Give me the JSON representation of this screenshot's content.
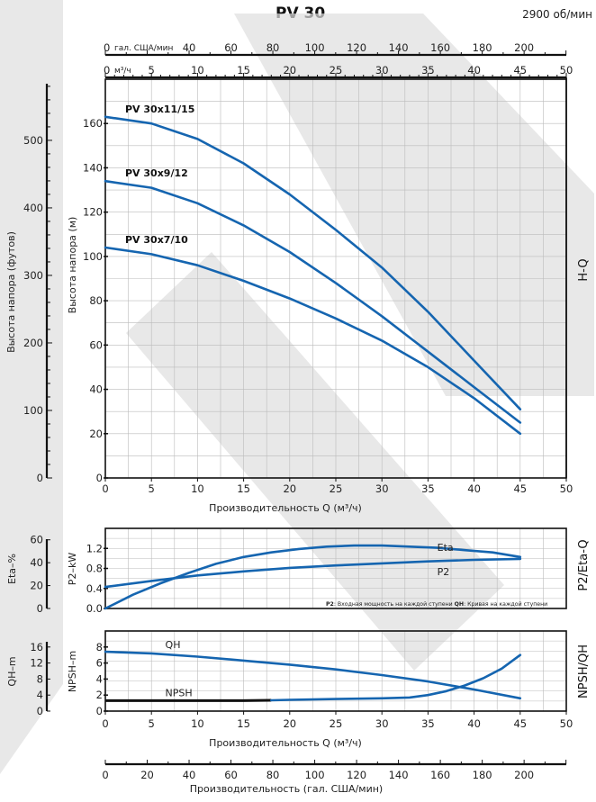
{
  "header": {
    "title": "PV 30",
    "speed": "2900 об/мин"
  },
  "colors": {
    "curve": "#1565b0",
    "grid": "#bbbbbb",
    "watermark": "#dedede",
    "axis": "#111111"
  },
  "chart_data": [
    {
      "type": "line",
      "name": "H-Q",
      "side_label": "H-Q",
      "xlabel": "Производительность Q (м³/ч)",
      "ylabel": "Высота напора (м)",
      "ylabel_ft": "Высота напора (футов)",
      "xlim": [
        0,
        50
      ],
      "ylim": [
        0,
        180
      ],
      "x_ticks": [
        0,
        5,
        10,
        15,
        20,
        25,
        30,
        35,
        40,
        45,
        50
      ],
      "y_ticks": [
        0,
        20,
        40,
        60,
        80,
        100,
        120,
        140,
        160
      ],
      "ft_ticks": [
        0,
        100,
        200,
        300,
        400,
        500
      ],
      "grid": true,
      "series": [
        {
          "name": "PV 30x11/15",
          "x": [
            0,
            5,
            10,
            15,
            20,
            25,
            30,
            35,
            40,
            45
          ],
          "y": [
            163,
            160,
            153,
            142,
            128,
            112,
            95,
            75,
            53,
            31
          ]
        },
        {
          "name": "PV 30x9/12",
          "x": [
            0,
            5,
            10,
            15,
            20,
            25,
            30,
            35,
            40,
            45
          ],
          "y": [
            134,
            131,
            124,
            114,
            102,
            88,
            73,
            57,
            41,
            25
          ]
        },
        {
          "name": "PV 30x7/10",
          "x": [
            0,
            5,
            10,
            15,
            20,
            25,
            30,
            35,
            40,
            45
          ],
          "y": [
            104,
            101,
            96,
            89,
            81,
            72,
            62,
            50,
            36,
            20
          ]
        }
      ]
    },
    {
      "type": "line",
      "name": "P2/Eta-Q",
      "side_label": "P2/Eta-Q",
      "ylabel_left": "Eta–%",
      "ylabel_right": "P2–kW",
      "eta_ticks": [
        0,
        20,
        40,
        60
      ],
      "p2_ticks": [
        "0.0",
        "0.4",
        "0.8",
        "1.2"
      ],
      "xlim": [
        0,
        50
      ],
      "eta_lim": [
        0,
        70
      ],
      "p2_lim": [
        0,
        1.6
      ],
      "grid": true,
      "note_p2_key": "P2",
      "note_p2_text": ": Входная мощность на каждой ступени ",
      "note_qh_key": "QH",
      "note_qh_text": ": Кривая на каждой ступени",
      "series": [
        {
          "name": "Eta",
          "axis": "eta",
          "x": [
            0,
            3,
            6,
            9,
            12,
            15,
            18,
            21,
            24,
            27,
            30,
            33,
            36,
            39,
            42,
            45
          ],
          "y": [
            0,
            12,
            22,
            31,
            39,
            45,
            49,
            52,
            54,
            55,
            55,
            54,
            53,
            51,
            49,
            45
          ]
        },
        {
          "name": "P2",
          "axis": "p2",
          "x": [
            0,
            5,
            10,
            15,
            20,
            25,
            30,
            35,
            40,
            45
          ],
          "y": [
            0.43,
            0.55,
            0.66,
            0.74,
            0.81,
            0.86,
            0.9,
            0.94,
            0.97,
            0.99
          ]
        }
      ]
    },
    {
      "type": "line",
      "name": "NPSH/QH",
      "side_label": "NPSH/QH",
      "ylabel_left": "QH–m",
      "ylabel_right": "NPSH–m",
      "qh_ticks": [
        0,
        4,
        8,
        12,
        16
      ],
      "npsh_ticks": [
        0,
        2,
        4,
        6,
        8
      ],
      "xlim": [
        0,
        50
      ],
      "npsh_lim": [
        0,
        10
      ],
      "xlabel": "Производительность Q (м³/ч)",
      "x_ticks": [
        0,
        5,
        10,
        15,
        20,
        25,
        30,
        35,
        40,
        45,
        50
      ],
      "grid": true,
      "series": [
        {
          "name": "QH",
          "x": [
            0,
            5,
            10,
            15,
            20,
            25,
            30,
            35,
            40,
            45
          ],
          "y": [
            7.4,
            7.2,
            6.8,
            6.3,
            5.8,
            5.2,
            4.5,
            3.7,
            2.7,
            1.6
          ]
        },
        {
          "name": "NPSH",
          "x": [
            0,
            5,
            10,
            15,
            18,
            20,
            25,
            30,
            33,
            35,
            37,
            39,
            41,
            43,
            45
          ],
          "y": [
            1.3,
            1.3,
            1.3,
            1.3,
            1.35,
            1.4,
            1.5,
            1.6,
            1.7,
            2.0,
            2.5,
            3.2,
            4.1,
            5.3,
            7.0
          ]
        }
      ]
    }
  ],
  "top_axes": {
    "gpm_label": "гал. США/мин",
    "gpm_ticks": [
      0,
      40,
      60,
      80,
      100,
      120,
      140,
      160,
      180,
      200
    ],
    "m3h_label": "м³/ч",
    "m3h_ticks": [
      0,
      5,
      10,
      15,
      20,
      25,
      30,
      35,
      40,
      45,
      50
    ]
  },
  "bottom_axis": {
    "label": "Производительность (гал. США/мин)",
    "ticks": [
      0,
      20,
      40,
      60,
      80,
      100,
      120,
      140,
      160,
      180,
      200
    ]
  }
}
